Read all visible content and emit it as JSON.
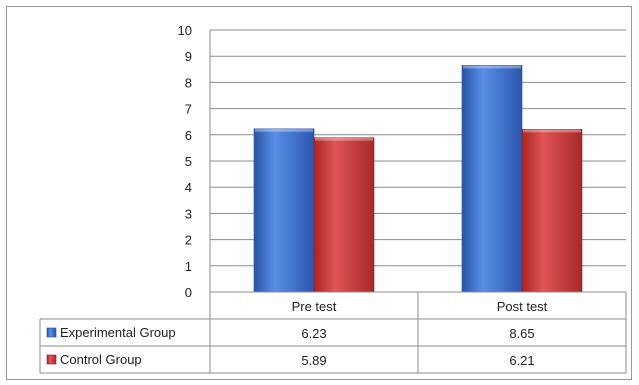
{
  "chart_data": {
    "type": "bar",
    "categories": [
      "Pre test",
      "Post test"
    ],
    "series": [
      {
        "name": "Experimental Group",
        "values": [
          6.23,
          8.65
        ],
        "color": "#3a6fd0"
      },
      {
        "name": "Control Group",
        "values": [
          5.89,
          6.21
        ],
        "color": "#c83434"
      }
    ],
    "ylim": [
      0,
      10
    ],
    "yticks": [
      "0",
      "1",
      "2",
      "3",
      "4",
      "5",
      "6",
      "7",
      "8",
      "9",
      "10"
    ],
    "grid": true,
    "legend": "data-table",
    "data_table": {
      "rows": [
        {
          "label": "Experimental Group",
          "cells": [
            "6.23",
            "8.65"
          ]
        },
        {
          "label": "Control Group",
          "cells": [
            "5.89",
            "6.21"
          ]
        }
      ]
    }
  }
}
